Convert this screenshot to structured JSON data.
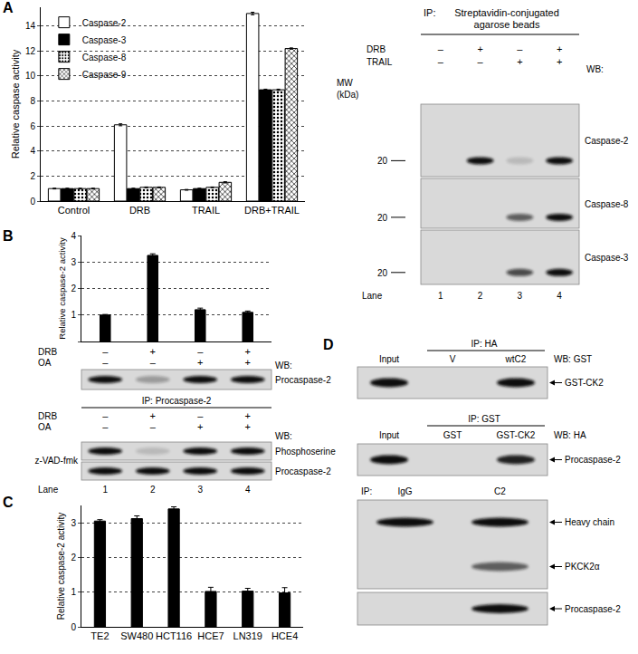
{
  "panel_labels": [
    "A",
    "B",
    "C",
    "D"
  ],
  "chart_data": [
    {
      "type": "bar",
      "ylabel": "Relative caspase activity",
      "categories": [
        "Control",
        "DRB",
        "TRAIL",
        "DRB+TRAIL"
      ],
      "series": [
        {
          "name": "Caspase-2",
          "color": "#ffffff",
          "marker": "solid",
          "values": [
            1.0,
            6.1,
            0.9,
            15.0
          ],
          "errors": [
            0.03,
            0.08,
            0.03,
            0.1
          ]
        },
        {
          "name": "Caspase-3",
          "color": "#000000",
          "marker": "solid",
          "values": [
            1.0,
            1.0,
            1.0,
            8.9
          ],
          "errors": [
            0.03,
            0.03,
            0.03,
            0.05
          ]
        },
        {
          "name": "Caspase-8",
          "color": "#ffffff",
          "marker": "dots",
          "values": [
            1.0,
            1.1,
            1.1,
            8.9
          ],
          "errors": [
            0.03,
            0.03,
            0.03,
            0.05
          ]
        },
        {
          "name": "Caspase-9",
          "color": "#ffffff",
          "marker": "hatch",
          "values": [
            1.0,
            1.1,
            1.5,
            12.2
          ],
          "errors": [
            0.03,
            0.03,
            0.05,
            0.05
          ]
        }
      ],
      "ylim": [
        0,
        15.5
      ],
      "yticks": [
        0,
        2,
        4,
        6,
        8,
        10,
        12,
        14
      ],
      "grid": true,
      "legend": "upper left"
    },
    {
      "type": "bar",
      "ylabel": "Relative caspase-2 activity",
      "categories": [
        null,
        null,
        null,
        null
      ],
      "values": [
        1.0,
        3.25,
        1.2,
        1.1
      ],
      "errors": [
        0.02,
        0.06,
        0.06,
        0.05
      ],
      "color": "#000000",
      "ylim": [
        0,
        4
      ],
      "yticks": [
        0,
        1,
        2,
        3,
        4
      ],
      "grid": true,
      "tick_labels": "y"
    },
    {
      "type": "bar",
      "ylabel": "Relative caspase-2 activity",
      "categories": [
        "TE2",
        "SW480",
        "HCT116",
        "HCE7",
        "LN319",
        "HCE4"
      ],
      "values": [
        3.05,
        3.12,
        3.4,
        1.02,
        1.03,
        0.98
      ],
      "errors": [
        0.04,
        0.08,
        0.06,
        0.12,
        0.08,
        0.15
      ],
      "color": "#000000",
      "ylim": [
        0,
        3.5
      ],
      "yticks": [
        0,
        1,
        2,
        3
      ],
      "grid": true
    }
  ],
  "panel_A_blot": {
    "ip_label": "IP:",
    "ip_target": [
      "Streptavidin-conjugated",
      "agarose beads"
    ],
    "conditions": [
      {
        "name": "DRB",
        "signs": [
          "–",
          "+",
          "–",
          "+"
        ]
      },
      {
        "name": "TRAIL",
        "signs": [
          "–",
          "–",
          "+",
          "+"
        ]
      }
    ],
    "wb_label": "WB:",
    "mw_label": [
      "MW",
      "(kDa)"
    ],
    "rows": [
      {
        "label": "Caspase-2",
        "mw": 20,
        "bands": [
          0,
          1,
          0.15,
          1
        ]
      },
      {
        "label": "Caspase-8",
        "mw": 20,
        "bands": [
          0,
          0,
          0.6,
          1
        ]
      },
      {
        "label": "Caspase-3",
        "mw": 20,
        "bands": [
          0,
          0,
          0.7,
          1
        ]
      }
    ],
    "lane_label": "Lane",
    "lanes": [
      1,
      2,
      3,
      4
    ]
  },
  "panel_B_blots": {
    "conditions": [
      {
        "name": "DRB",
        "signs": [
          "–",
          "+",
          "–",
          "+"
        ]
      },
      {
        "name": "OA",
        "signs": [
          "–",
          "–",
          "+",
          "+"
        ]
      }
    ],
    "wb_label": "WB:",
    "top_blot": {
      "label": "Procaspase-2",
      "bands": [
        1,
        0.3,
        1,
        1
      ]
    },
    "ip_label": "IP: Procaspase-2",
    "ip_rows": [
      {
        "label": "Phosphoserine",
        "bands": [
          1,
          0.15,
          1,
          1
        ]
      },
      {
        "label": "Procaspase-2",
        "bands": [
          1,
          1,
          1,
          1
        ]
      }
    ],
    "side_label": "z-VAD-fmk",
    "lane_label": "Lane",
    "lanes": [
      1,
      2,
      3,
      4
    ]
  },
  "panel_D_blots": [
    {
      "ip": "IP: HA",
      "columns": [
        "Input",
        "V",
        "wtC2"
      ],
      "wb": "WB: GST",
      "boxes": [
        [
          {
            "label": "GST-CK2",
            "bands": [
              1,
              0,
              1
            ]
          }
        ]
      ]
    },
    {
      "ip": "IP: GST",
      "columns": [
        "Input",
        "GST",
        "GST-CK2"
      ],
      "wb": "WB: HA",
      "boxes": [
        [
          {
            "label": "Procaspase-2",
            "bands": [
              1,
              0,
              0.9
            ]
          }
        ]
      ]
    },
    {
      "ip": "IP:",
      "columns": [
        "IgG",
        "C2"
      ],
      "boxes": [
        [
          {
            "label": "Heavy chain",
            "bands": [
              1,
              1
            ]
          },
          {
            "label": "PKCK2α",
            "bands": [
              0,
              0.6
            ]
          }
        ],
        [
          {
            "label": "Procaspase-2",
            "bands": [
              0,
              1
            ]
          }
        ]
      ]
    }
  ]
}
